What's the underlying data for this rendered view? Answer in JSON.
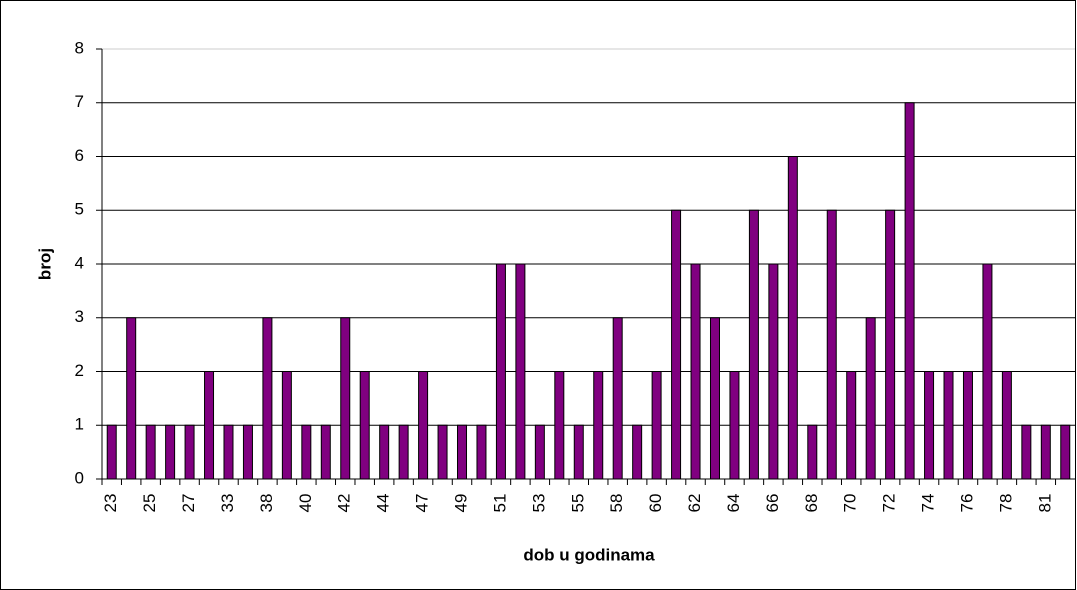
{
  "chart_data": {
    "type": "bar",
    "x_label": "dob u godinama",
    "y_label": "broj",
    "categories": [
      "23",
      null,
      "25",
      null,
      "27",
      null,
      "33",
      null,
      "38",
      null,
      "40",
      null,
      "42",
      null,
      "44",
      null,
      "47",
      null,
      "49",
      null,
      "51",
      null,
      "53",
      null,
      "55",
      null,
      "58",
      null,
      "60",
      null,
      "62",
      null,
      "64",
      null,
      "66",
      null,
      "68",
      null,
      "70",
      null,
      "72",
      null,
      "74",
      null,
      "76",
      null,
      "78",
      null,
      "81",
      null
    ],
    "values": [
      1,
      3,
      1,
      1,
      1,
      2,
      1,
      1,
      3,
      2,
      1,
      1,
      3,
      2,
      1,
      1,
      2,
      1,
      1,
      1,
      4,
      4,
      1,
      2,
      1,
      2,
      3,
      1,
      2,
      5,
      4,
      3,
      2,
      5,
      4,
      6,
      1,
      5,
      2,
      3,
      5,
      7,
      2,
      2,
      2,
      4,
      2,
      1,
      1,
      1
    ],
    "color": "#800080",
    "ylim": [
      0,
      8
    ],
    "yticks": [
      0,
      1,
      2,
      3,
      4,
      5,
      6,
      7,
      8
    ],
    "grid": true
  }
}
